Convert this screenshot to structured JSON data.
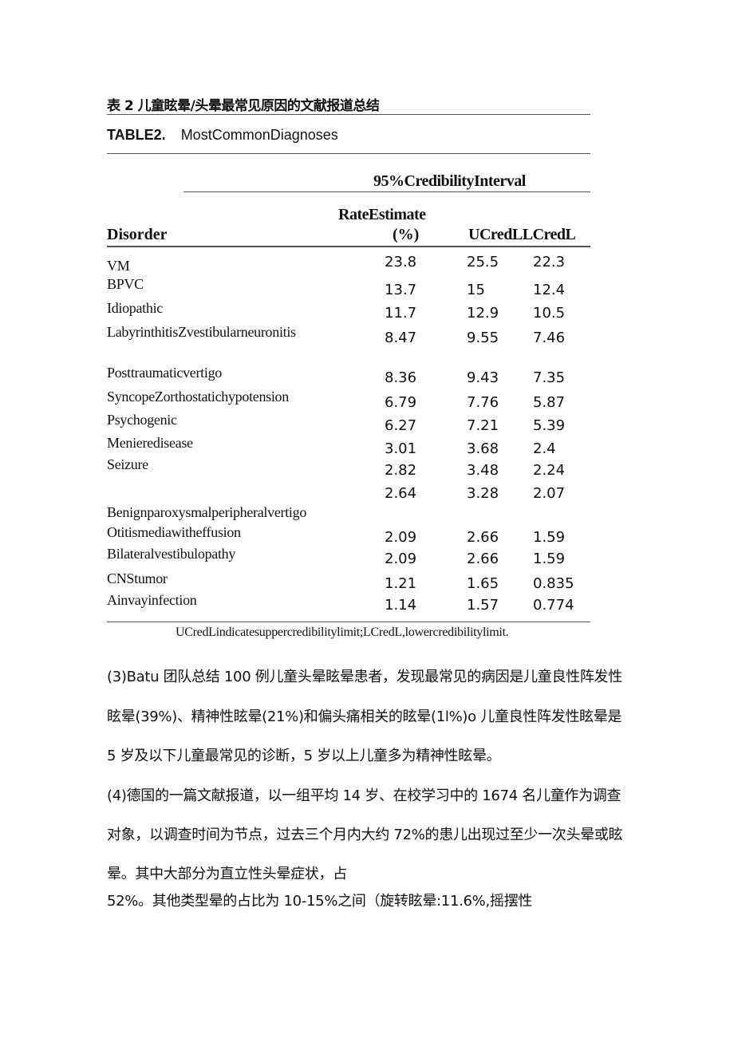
{
  "cn_title": "表 2 儿童眩晕/头晕最常见原因的文献报道总结",
  "table_label": "TABLE2.",
  "table_title": "MostCommonDiagnoses",
  "header": {
    "group": "95%CredibilityInterval",
    "disorder": "Disorder",
    "rate_line1": "RateEstimate",
    "rate_line2": "(%)",
    "ucl_lcl": "UCredLLCredL"
  },
  "labels": [
    "VM",
    "BPVC",
    "Idiopathic",
    "LabyrinthitisZvestibularneuronitis",
    "Posttraumaticvertigo",
    "SyncopeZorthostatichypotension",
    "Psychogenic",
    "Menieredisease",
    "Seizure",
    "Benignparoxysmalperipheralvertigo",
    "Otitismediawitheffusion",
    "Bilateralvestibulopathy",
    "CNStumor",
    "Ainvayinfection"
  ],
  "values": [
    [
      "23.8",
      "25.5",
      "22.3"
    ],
    [
      "13.7",
      "15",
      "12.4"
    ],
    [
      "11.7",
      "12.9",
      "10.5"
    ],
    [
      "8.47",
      "9.55",
      "7.46"
    ],
    [
      "8.36",
      "9.43",
      "7.35"
    ],
    [
      "6.79",
      "7.76",
      "5.87"
    ],
    [
      "6.27",
      "7.21",
      "5.39"
    ],
    [
      "3.01",
      "3.68",
      "2.4"
    ],
    [
      "2.82",
      "3.48",
      "2.24"
    ],
    [
      "2.64",
      "3.28",
      "2.07"
    ],
    [
      "2.09",
      "2.66",
      "1.59"
    ],
    [
      "2.09",
      "2.66",
      "1.59"
    ],
    [
      "1.21",
      "1.65",
      "0.835"
    ],
    [
      "1.14",
      "1.57",
      "0.774"
    ]
  ],
  "footnote": "UCredLindicatesuppercredibilitylimit;LCredL,lowercredibilitylimit.",
  "paragraphs": [
    "(3)Batu 团队总结 100 例儿童头晕眩晕患者，发现最常见的病因是儿童良性阵发性",
    "眩晕(39%)、精神性眩晕(21%)和偏头痛相关的眩晕(1l%)o 儿童良性阵发性眩晕是",
    "5 岁及以下儿童最常见的诊断，5 岁以上儿童多为精神性眩晕。",
    "(4)德国的一篇文献报道，以一组平均 14 岁、在校学习中的 1674 名儿童作为调查",
    "对象，以调查时间为节点，过去三个月内大约 72%的患儿出现过至少一次头晕或眩",
    "晕。其中大部分为直立性头晕症状，占",
    "52%。其他类型晕的占比为 10-15%之间（旋转眩晕:11.6%,摇摆性"
  ]
}
